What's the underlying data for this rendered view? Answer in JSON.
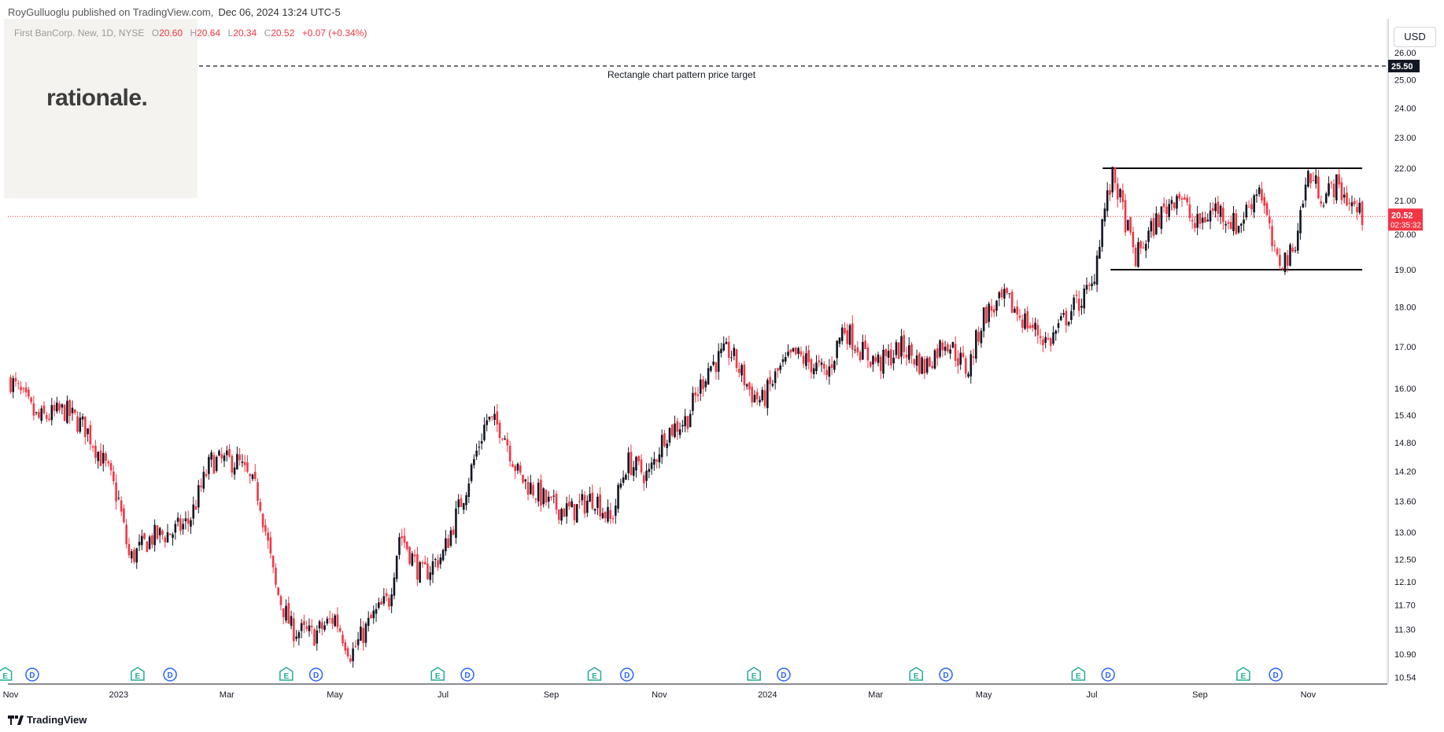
{
  "header": {
    "publisher": "RoyGulluoglu published on TradingView.com,",
    "date": "Dec 06, 2024 13:24 UTC-5"
  },
  "logo": {
    "text": "rationale."
  },
  "legend": {
    "symbol": "First BanCorp. New, 1D, NYSE",
    "o_label": "O",
    "o": "20.60",
    "h_label": "H",
    "h": "20.64",
    "l_label": "L",
    "l": "20.34",
    "c_label": "C",
    "c": "20.52",
    "change": "+0.07 (+0.34%)"
  },
  "currency": "USD",
  "footer": {
    "brand": "TradingView",
    "icon": "tradingview-logo-icon"
  },
  "colors": {
    "up": "#131722",
    "down": "#f23645",
    "price_line": "#f23645",
    "target_line": "#131722",
    "event_earnings": "#22ab94",
    "event_dividend": "#2962ff"
  },
  "chart_data": {
    "type": "candlestick",
    "title": "First BanCorp. New, 1D, NYSE",
    "y_scale": "log",
    "ylim": [
      10.44,
      27.3
    ],
    "y_ticks": [
      26.0,
      25.0,
      24.0,
      23.0,
      22.0,
      21.0,
      20.0,
      19.0,
      18.0,
      17.0,
      16.0,
      15.4,
      14.8,
      14.2,
      13.6,
      13.0,
      12.5,
      12.1,
      11.7,
      11.3,
      10.9,
      10.54
    ],
    "y_tick_labels": [
      "26.00",
      "25.00",
      "24.00",
      "23.00",
      "22.00",
      "21.00",
      "20.00",
      "19.00",
      "18.00",
      "17.00",
      "16.00",
      "15.40",
      "14.80",
      "14.20",
      "13.60",
      "13.00",
      "12.50",
      "12.10",
      "11.70",
      "11.30",
      "10.90",
      "10.54"
    ],
    "x_ticks": [
      "Nov",
      "2023",
      "Mar",
      "May",
      "Jul",
      "Sep",
      "Nov",
      "2024",
      "Mar",
      "May",
      "Jul",
      "Sep",
      "Nov"
    ],
    "x_tick_months": [
      0,
      2,
      4,
      6,
      8,
      10,
      12,
      14,
      16,
      18,
      20,
      22,
      24
    ],
    "x_range_months": [
      -0.05,
      25.45
    ],
    "price_path": [
      [
        0.0,
        16.2
      ],
      [
        0.5,
        15.3
      ],
      [
        1.0,
        15.5
      ],
      [
        1.4,
        15.1
      ],
      [
        1.8,
        14.2
      ],
      [
        2.0,
        13.6
      ],
      [
        2.2,
        12.5
      ],
      [
        2.6,
        12.9
      ],
      [
        3.0,
        13.0
      ],
      [
        3.3,
        13.2
      ],
      [
        3.7,
        14.4
      ],
      [
        4.2,
        14.4
      ],
      [
        4.6,
        13.7
      ],
      [
        4.9,
        12.0
      ],
      [
        5.2,
        11.3
      ],
      [
        5.6,
        11.2
      ],
      [
        6.0,
        11.5
      ],
      [
        6.3,
        10.9
      ],
      [
        6.7,
        11.5
      ],
      [
        7.0,
        11.8
      ],
      [
        7.2,
        13.0
      ],
      [
        7.6,
        12.2
      ],
      [
        8.0,
        12.6
      ],
      [
        8.4,
        13.8
      ],
      [
        8.8,
        15.3
      ],
      [
        9.1,
        15.1
      ],
      [
        9.4,
        14.1
      ],
      [
        9.7,
        13.8
      ],
      [
        10.0,
        13.5
      ],
      [
        10.4,
        13.4
      ],
      [
        10.8,
        13.7
      ],
      [
        11.1,
        13.2
      ],
      [
        11.4,
        14.4
      ],
      [
        11.8,
        14.1
      ],
      [
        12.1,
        15.0
      ],
      [
        12.5,
        15.3
      ],
      [
        12.9,
        16.5
      ],
      [
        13.3,
        16.9
      ],
      [
        13.7,
        15.9
      ],
      [
        13.9,
        15.7
      ],
      [
        14.2,
        16.4
      ],
      [
        14.5,
        16.8
      ],
      [
        14.8,
        16.6
      ],
      [
        15.1,
        16.3
      ],
      [
        15.4,
        17.5
      ],
      [
        15.8,
        16.8
      ],
      [
        16.1,
        16.6
      ],
      [
        16.5,
        17.0
      ],
      [
        16.9,
        16.5
      ],
      [
        17.3,
        17.2
      ],
      [
        17.7,
        16.4
      ],
      [
        18.0,
        17.8
      ],
      [
        18.4,
        18.2
      ],
      [
        18.8,
        17.6
      ],
      [
        19.2,
        17.1
      ],
      [
        19.6,
        17.9
      ],
      [
        20.0,
        18.5
      ],
      [
        20.2,
        20.5
      ],
      [
        20.4,
        21.8
      ],
      [
        20.8,
        19.3
      ],
      [
        21.2,
        20.4
      ],
      [
        21.6,
        21.3
      ],
      [
        21.9,
        20.2
      ],
      [
        22.3,
        20.8
      ],
      [
        22.7,
        20.2
      ],
      [
        23.1,
        21.5
      ],
      [
        23.4,
        19.2
      ],
      [
        23.7,
        19.4
      ],
      [
        24.0,
        21.8
      ],
      [
        24.3,
        21.1
      ],
      [
        24.5,
        21.5
      ],
      [
        24.8,
        20.9
      ],
      [
        25.0,
        20.52
      ]
    ],
    "last": {
      "value": 20.52,
      "label": "20.52",
      "countdown": "02:35:32"
    },
    "price_target": {
      "value": 25.5,
      "label": "25.50",
      "annotation": "Rectangle chart pattern price target"
    },
    "rectangle": {
      "top": 22.0,
      "bottom": 19.0,
      "x_from": 20.2,
      "x_to": 25.0
    },
    "events": [
      {
        "kind": "E",
        "month": -0.1
      },
      {
        "kind": "D",
        "month": 0.4
      },
      {
        "kind": "E",
        "month": 2.35
      },
      {
        "kind": "D",
        "month": 2.95
      },
      {
        "kind": "E",
        "month": 5.1
      },
      {
        "kind": "D",
        "month": 5.65
      },
      {
        "kind": "E",
        "month": 7.9
      },
      {
        "kind": "D",
        "month": 8.45
      },
      {
        "kind": "E",
        "month": 10.8
      },
      {
        "kind": "D",
        "month": 11.4
      },
      {
        "kind": "E",
        "month": 13.75
      },
      {
        "kind": "D",
        "month": 14.3
      },
      {
        "kind": "E",
        "month": 16.75
      },
      {
        "kind": "D",
        "month": 17.3
      },
      {
        "kind": "E",
        "month": 19.75
      },
      {
        "kind": "D",
        "month": 20.3
      },
      {
        "kind": "E",
        "month": 22.8
      },
      {
        "kind": "D",
        "month": 23.4
      }
    ]
  }
}
